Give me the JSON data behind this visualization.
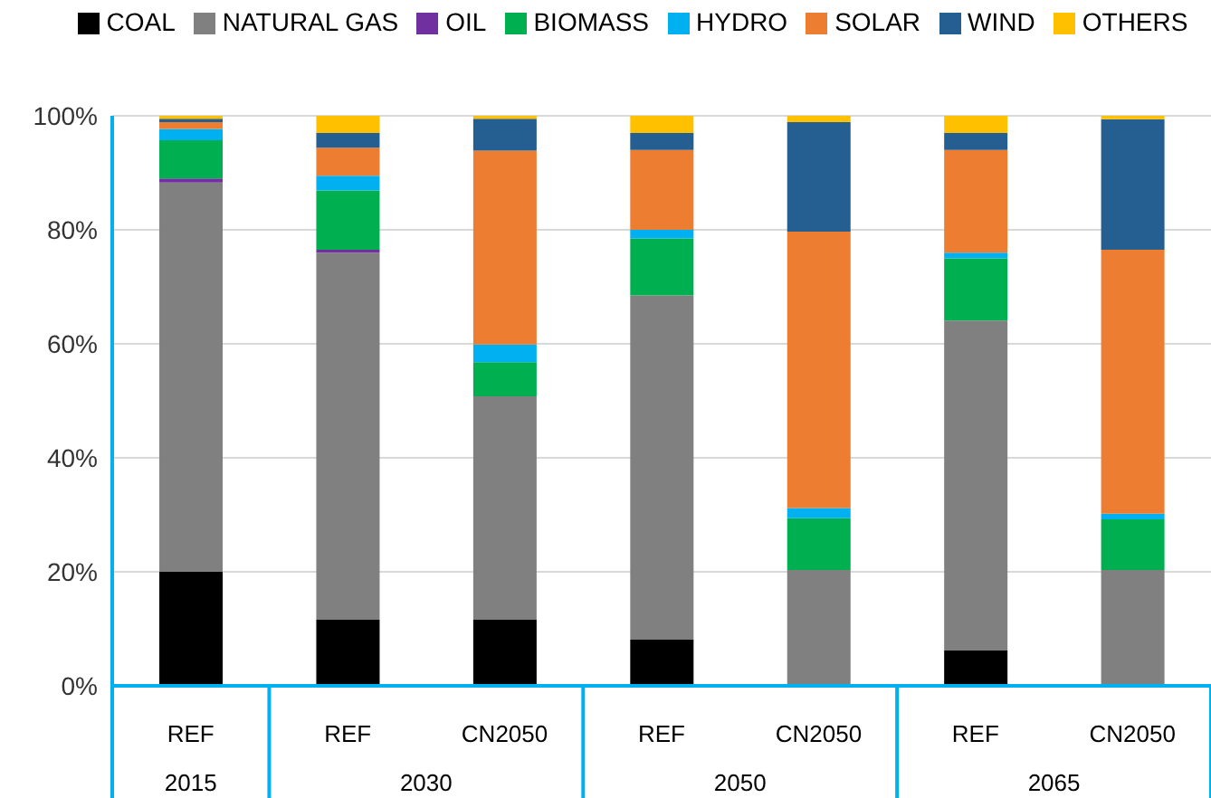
{
  "chart_data": {
    "type": "bar",
    "stacked": true,
    "categories": [
      "REF",
      "REF",
      "CN2050",
      "REF",
      "CN2050",
      "REF",
      "CN2050"
    ],
    "annotations": [
      "2015",
      "2030",
      "2050",
      "2065"
    ],
    "series": [
      {
        "name": "COAL",
        "color": "#000000",
        "values": [
          20,
          11.6,
          11.6,
          8.1,
          0,
          6.2,
          0
        ]
      },
      {
        "name": "NATURAL GAS",
        "color": "#808080",
        "values": [
          68.3,
          64.4,
          39.2,
          60.4,
          20.3,
          57.9,
          20.3
        ]
      },
      {
        "name": "OIL",
        "color": "#7030a0",
        "values": [
          0.7,
          0.5,
          0,
          0,
          0,
          0,
          0
        ]
      },
      {
        "name": "BIOMASS",
        "color": "#00b050",
        "values": [
          6.7,
          10.4,
          6,
          10,
          9.1,
          10.9,
          8.9
        ]
      },
      {
        "name": "HYDRO",
        "color": "#00b0f0",
        "values": [
          2,
          2.6,
          3.1,
          1.5,
          1.8,
          1,
          1
        ]
      },
      {
        "name": "SOLAR",
        "color": "#ed7d31",
        "values": [
          1.2,
          4.9,
          34,
          14,
          48.5,
          18,
          46.3
        ]
      },
      {
        "name": "WIND",
        "color": "#255e91",
        "values": [
          0.6,
          2.6,
          5.6,
          3,
          19.2,
          3,
          22.9
        ]
      },
      {
        "name": "OTHERS",
        "color": "#ffc000",
        "values": [
          0.5,
          3,
          0.5,
          3,
          1.1,
          3,
          0.6
        ]
      }
    ],
    "ylim": [
      0,
      100
    ],
    "yticks": [
      {
        "value": 0,
        "label": "0%"
      },
      {
        "value": 20,
        "label": "20%"
      },
      {
        "value": 40,
        "label": "40%"
      },
      {
        "value": 60,
        "label": "60%"
      },
      {
        "value": 80,
        "label": "80%"
      },
      {
        "value": 100,
        "label": "100%"
      }
    ],
    "grid": "y",
    "legend": "top"
  }
}
